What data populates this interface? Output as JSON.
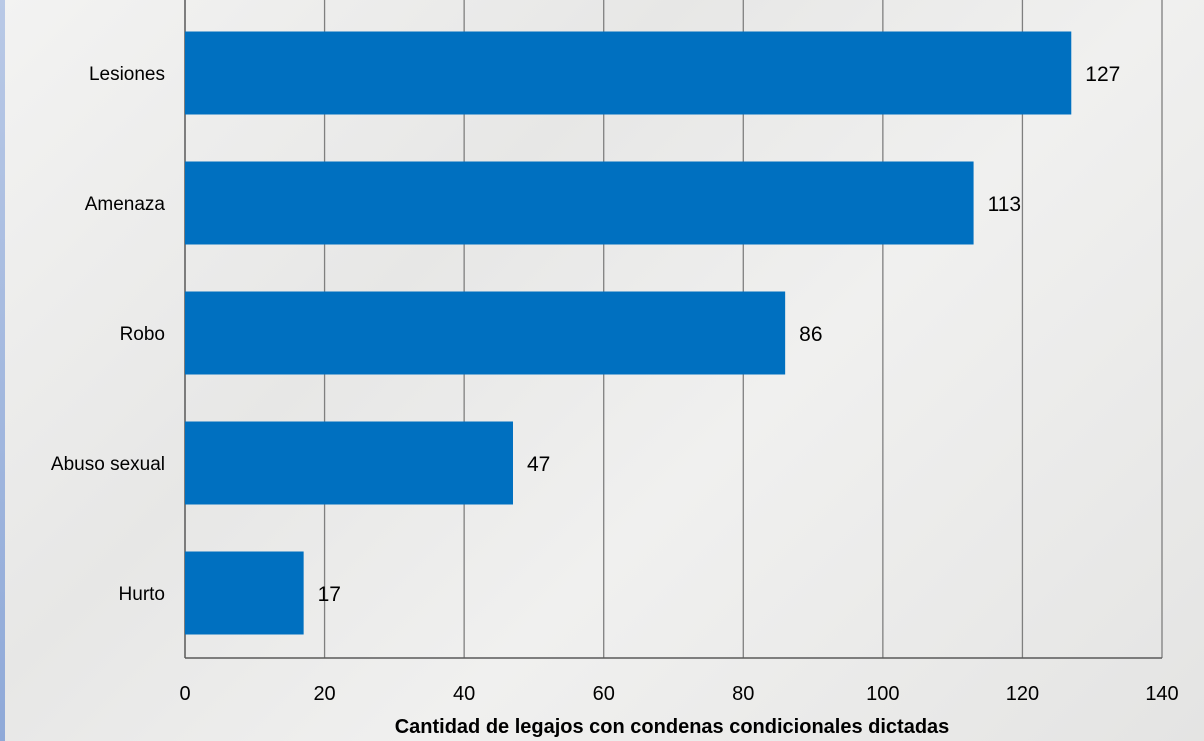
{
  "chart_data": {
    "type": "bar",
    "orientation": "horizontal",
    "categories": [
      "Lesiones",
      "Amenaza",
      "Robo",
      "Abuso sexual",
      "Hurto"
    ],
    "values": [
      127,
      113,
      86,
      47,
      17
    ],
    "data_labels": [
      "127",
      "113",
      "86",
      "47",
      "17"
    ],
    "xlabel": "Cantidad de legajos con condenas condicionales dictadas",
    "ylabel": "",
    "xlim": [
      0,
      140
    ],
    "x_ticks": [
      0,
      20,
      40,
      60,
      80,
      100,
      120,
      140
    ],
    "grid": "vertical",
    "legend": "none",
    "bar_color": "#0070c0"
  }
}
